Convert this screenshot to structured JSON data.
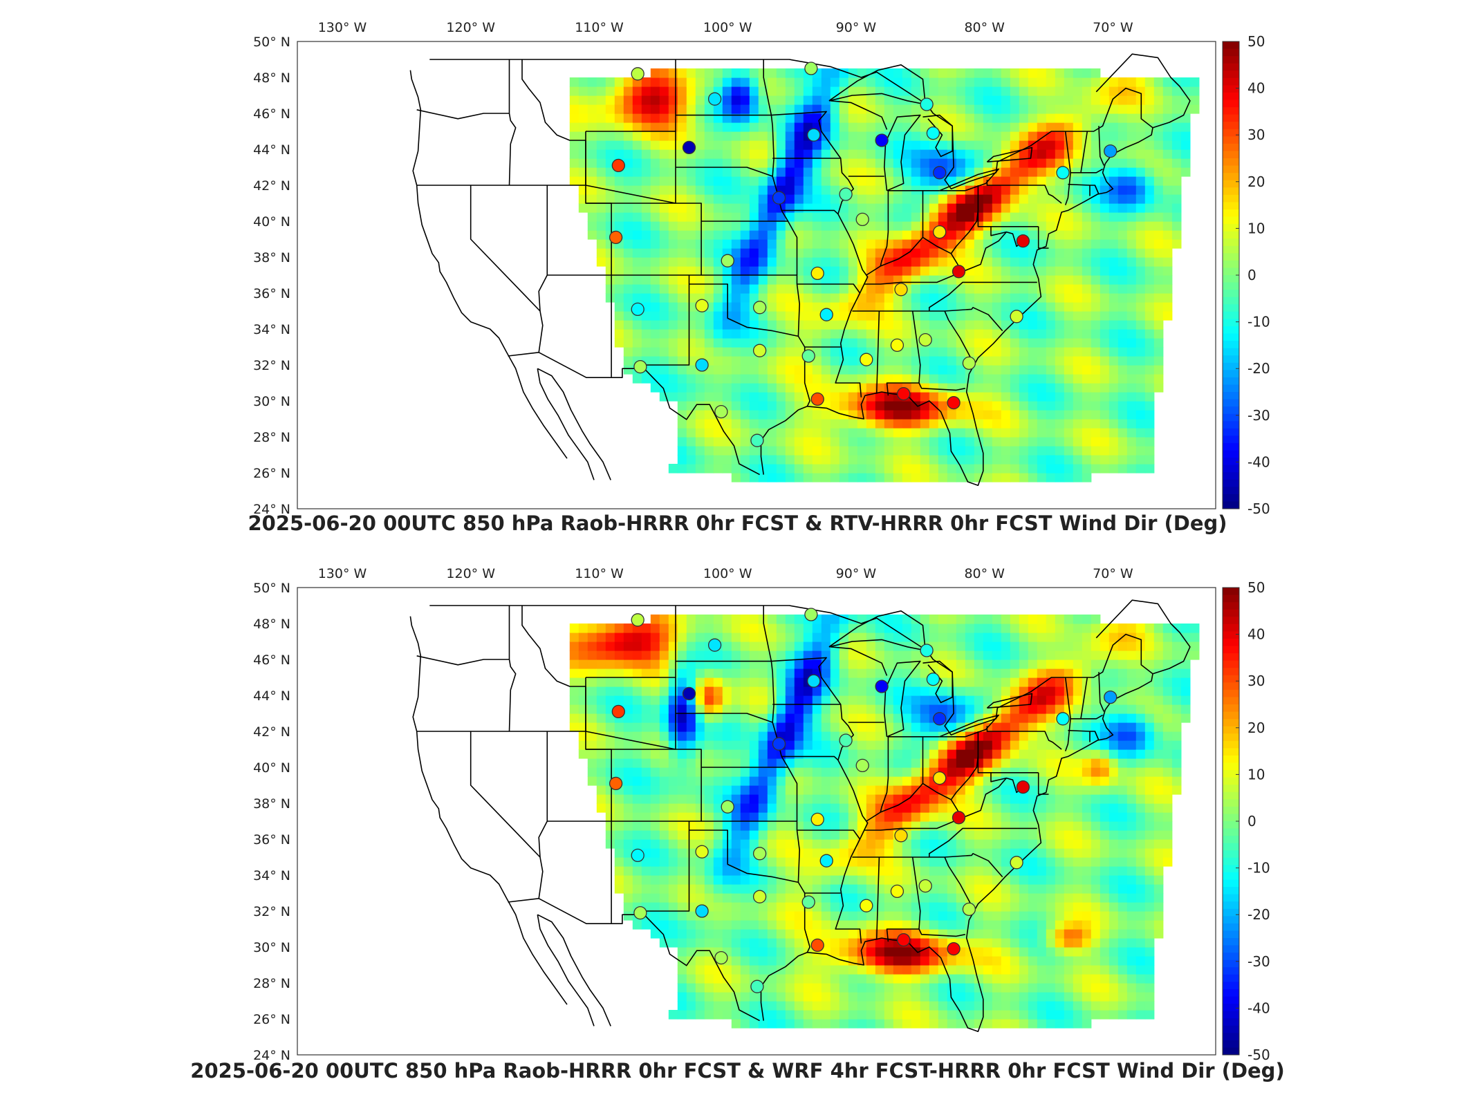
{
  "panels": [
    {
      "title": "2025-06-20 00UTC 850 hPa Raob-HRRR 0hr FCST & RTV-HRRR 0hr FCST Wind Dir (Deg)",
      "pattern": "rtv"
    },
    {
      "title": "2025-06-20 00UTC 850 hPa Raob-HRRR 0hr FCST & WRF 4hr FCST-HRRR 0hr FCST Wind Dir (Deg)",
      "pattern": "wrf"
    }
  ],
  "lon_ticks": [
    "130° W",
    "120° W",
    "110° W",
    "100° W",
    "90° W",
    "80° W",
    "70° W"
  ],
  "lat_ticks": [
    "50° N",
    "48° N",
    "46° N",
    "44° N",
    "42° N",
    "40° N",
    "38° N",
    "36° N",
    "34° N",
    "32° N",
    "30° N",
    "28° N",
    "26° N",
    "24° N"
  ],
  "colorbar": {
    "min": -50,
    "max": 50,
    "tick_labels": [
      "50",
      "40",
      "30",
      "20",
      "10",
      "0",
      "-10",
      "-20",
      "-30",
      "-40",
      "-50"
    ],
    "colormap": "jet"
  },
  "stations": [
    {
      "lon": -107.0,
      "lat": 48.2,
      "v": 6
    },
    {
      "lon": -101.0,
      "lat": 46.8,
      "v": -15
    },
    {
      "lon": -103.0,
      "lat": 44.1,
      "v": -45
    },
    {
      "lon": -108.5,
      "lat": 43.1,
      "v": 32
    },
    {
      "lon": -108.7,
      "lat": 39.1,
      "v": 28
    },
    {
      "lon": -107.0,
      "lat": 35.1,
      "v": -13
    },
    {
      "lon": -106.8,
      "lat": 31.9,
      "v": 4
    },
    {
      "lon": -102.0,
      "lat": 35.3,
      "v": 10
    },
    {
      "lon": -100.0,
      "lat": 37.8,
      "v": 3
    },
    {
      "lon": -97.5,
      "lat": 35.2,
      "v": 4
    },
    {
      "lon": -97.5,
      "lat": 32.8,
      "v": 8
    },
    {
      "lon": -102.0,
      "lat": 32.0,
      "v": -16
    },
    {
      "lon": -100.5,
      "lat": 29.4,
      "v": 4
    },
    {
      "lon": -97.7,
      "lat": 27.8,
      "v": -6
    },
    {
      "lon": -93.0,
      "lat": 30.1,
      "v": 30
    },
    {
      "lon": -93.7,
      "lat": 32.5,
      "v": -3
    },
    {
      "lon": -92.3,
      "lat": 34.8,
      "v": -14
    },
    {
      "lon": -93.0,
      "lat": 37.1,
      "v": 14
    },
    {
      "lon": -96.0,
      "lat": 41.3,
      "v": -32
    },
    {
      "lon": -90.8,
      "lat": 41.5,
      "v": -5
    },
    {
      "lon": -93.3,
      "lat": 44.8,
      "v": -16
    },
    {
      "lon": -93.5,
      "lat": 48.5,
      "v": 3
    },
    {
      "lon": -88.0,
      "lat": 44.5,
      "v": -38
    },
    {
      "lon": -84.0,
      "lat": 44.9,
      "v": -12
    },
    {
      "lon": -83.5,
      "lat": 42.7,
      "v": -33
    },
    {
      "lon": -89.5,
      "lat": 40.1,
      "v": 4
    },
    {
      "lon": -83.5,
      "lat": 39.4,
      "v": 15
    },
    {
      "lon": -86.5,
      "lat": 36.2,
      "v": 16
    },
    {
      "lon": -86.8,
      "lat": 33.1,
      "v": 12
    },
    {
      "lon": -84.6,
      "lat": 33.4,
      "v": 7
    },
    {
      "lon": -89.2,
      "lat": 32.3,
      "v": 12
    },
    {
      "lon": -81.2,
      "lat": 32.1,
      "v": 5
    },
    {
      "lon": -82.0,
      "lat": 37.2,
      "v": 40
    },
    {
      "lon": -77.0,
      "lat": 38.9,
      "v": 40
    },
    {
      "lon": -77.5,
      "lat": 34.7,
      "v": 8
    },
    {
      "lon": -73.9,
      "lat": 42.7,
      "v": -12
    },
    {
      "lon": -70.2,
      "lat": 43.9,
      "v": -22
    },
    {
      "lon": -86.3,
      "lat": 30.4,
      "v": 38
    },
    {
      "lon": -82.4,
      "lat": 29.9,
      "v": 38
    },
    {
      "lon": -84.5,
      "lat": 46.5,
      "v": -10
    }
  ]
}
